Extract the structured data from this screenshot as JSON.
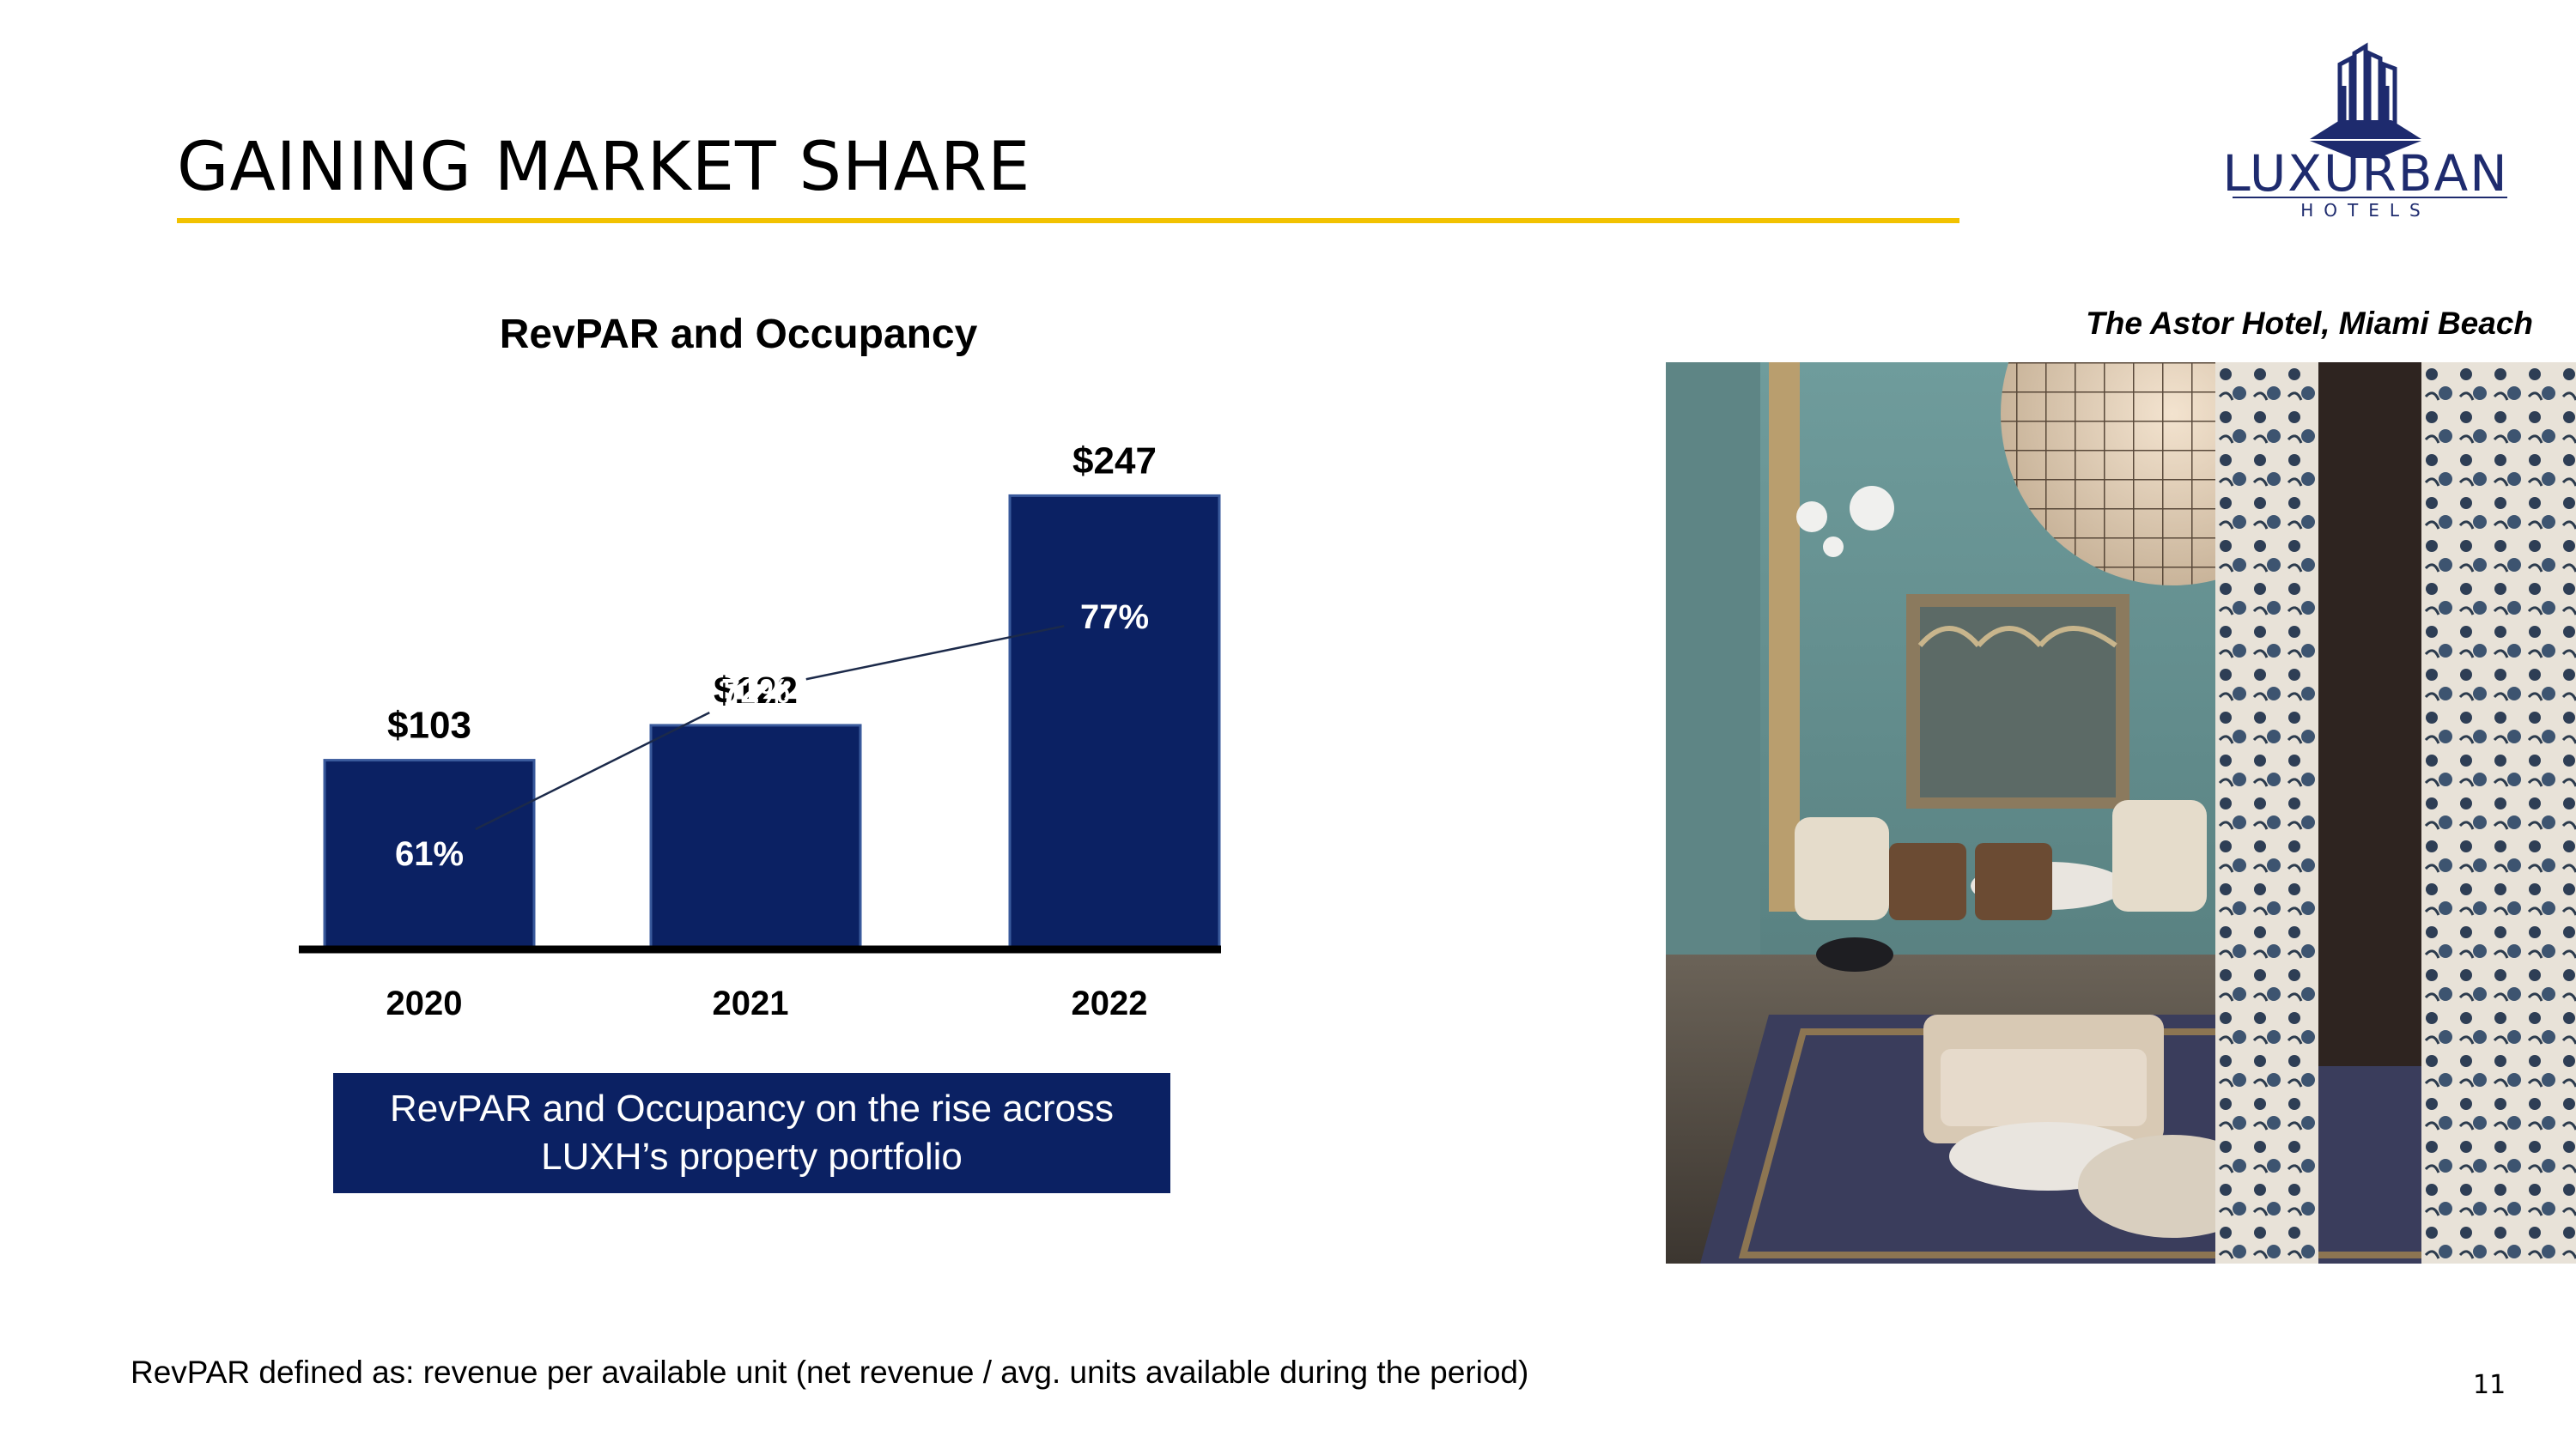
{
  "slide": {
    "title": "GAINING MARKET SHARE",
    "page_number": "11",
    "footnote": "RevPAR defined as: revenue per available unit (net revenue / avg. units available during the period)",
    "callout_line1": "RevPAR and Occupancy on the rise across",
    "callout_line2": "LUXH’s property portfolio",
    "photo_caption": "The Astor Hotel, Miami Beach"
  },
  "logo": {
    "name": "LUXURBAN",
    "subtitle": "HOTELS",
    "color": "#1E2B6E"
  },
  "colors": {
    "accent_rule": "#F2C200",
    "bar_fill": "#0B2163",
    "callout_fill": "#0B2163"
  },
  "chart_data": {
    "type": "bar",
    "title": "RevPAR and Occupancy",
    "categories": [
      "2020",
      "2021",
      "2022"
    ],
    "series": [
      {
        "values": [
          103,
          122,
          247
        ],
        "labels": [
          "$103",
          "$122",
          "$247"
        ]
      },
      {
        "values": [
          61,
          72,
          77
        ],
        "labels": [
          "61%",
          "72%",
          "77%"
        ],
        "style": "line"
      }
    ]
  }
}
